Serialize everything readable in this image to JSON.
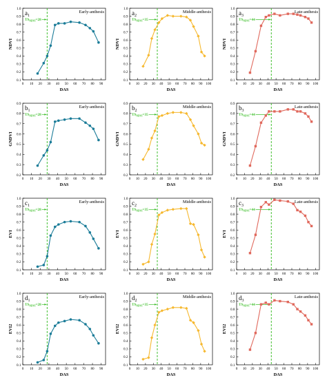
{
  "colors": {
    "early": "#1b7c98",
    "middle": "#f6b82e",
    "late": "#e0685c",
    "ts_line": "#3fbf2c"
  },
  "stages": {
    "early": {
      "title": "Early-anthesis",
      "ts_label": "TS",
      "ts_sub": "NDVI",
      "ts_value": "=28",
      "ts_x": 28
    },
    "middle": {
      "title": "Middle-anthesis",
      "ts_label": "TS",
      "ts_sub": "NDVI",
      "ts_value": "=35",
      "ts_x": 35
    },
    "late": {
      "title": "Late-anthesis",
      "ts_label": "TS",
      "ts_sub": "NDVI",
      "ts_value": "=44",
      "ts_x": 44
    }
  },
  "rows": [
    {
      "id": "a",
      "ylabel": "NDVI",
      "yticks": [
        "0.1",
        "0.2",
        "0.3",
        "0.4",
        "0.5",
        "0.6",
        "0.7",
        "0.8",
        "0.9",
        "1.0"
      ],
      "ylim": [
        0.1,
        1.0
      ]
    },
    {
      "id": "b",
      "ylabel": "GNDVI",
      "yticks": [
        "0.2",
        "0.3",
        "0.4",
        "0.5",
        "0.6",
        "0.7",
        "0.8",
        "0.9"
      ],
      "ylim": [
        0.2,
        0.9
      ]
    },
    {
      "id": "c",
      "ylabel": "EVI",
      "yticks": [
        "0.1",
        "0.2",
        "0.3",
        "0.4",
        "0.5",
        "0.6",
        "0.7",
        "0.8",
        "0.9",
        "1.0"
      ],
      "ylim": [
        0.1,
        1.0
      ]
    },
    {
      "id": "d",
      "ylabel": "EVI2",
      "yticks": [
        "0.1",
        "0.2",
        "0.3",
        "0.4",
        "0.5",
        "0.6",
        "0.7",
        "0.8",
        "0.9",
        "1.0"
      ],
      "ylim": [
        0.1,
        1.0
      ]
    }
  ],
  "xlabel": "DAS",
  "xticks_early": [
    "0",
    "10",
    "20",
    "30",
    "40",
    "50",
    "60",
    "70",
    "80",
    "90"
  ],
  "xticks": [
    "0",
    "10",
    "20",
    "30",
    "40",
    "50",
    "60",
    "70",
    "80",
    "90",
    "100"
  ],
  "xlim_early": [
    0,
    95
  ],
  "xlim": [
    0,
    105
  ],
  "chart_data": [
    {
      "panel": "a1",
      "type": "line",
      "title": "Early-anthesis",
      "xlabel": "DAS",
      "ylabel": "NDVI",
      "stage": "early",
      "x": [
        17,
        24,
        28,
        32,
        37,
        41,
        48,
        55,
        65,
        72,
        77,
        81,
        87
      ],
      "y": [
        0.18,
        0.31,
        0.4,
        0.53,
        0.79,
        0.81,
        0.81,
        0.83,
        0.82,
        0.79,
        0.75,
        0.71,
        0.57
      ]
    },
    {
      "panel": "a2",
      "type": "line",
      "title": "Middle-anthesis",
      "xlabel": "DAS",
      "ylabel": "NDVI",
      "stage": "middle",
      "x": [
        17,
        24,
        28,
        32,
        37,
        41,
        48,
        55,
        65,
        72,
        77,
        81,
        87,
        91,
        95
      ],
      "y": [
        0.27,
        0.41,
        0.62,
        0.73,
        0.82,
        0.87,
        0.91,
        0.9,
        0.9,
        0.89,
        0.85,
        0.77,
        0.65,
        0.45,
        0.4
      ]
    },
    {
      "panel": "a3",
      "type": "line",
      "title": "Late-anthesis",
      "xlabel": "DAS",
      "ylabel": "NDVI",
      "stage": "late",
      "x": [
        17,
        24,
        31,
        37,
        41,
        48,
        55,
        65,
        72,
        77,
        81,
        87,
        91,
        95
      ],
      "y": [
        0.19,
        0.46,
        0.78,
        0.89,
        0.91,
        0.93,
        0.91,
        0.93,
        0.93,
        0.92,
        0.91,
        0.89,
        0.87,
        0.82
      ]
    },
    {
      "panel": "b1",
      "type": "line",
      "title": "Early-anthesis",
      "xlabel": "DAS",
      "ylabel": "GNDVI",
      "stage": "early",
      "x": [
        17,
        24,
        28,
        32,
        37,
        41,
        48,
        55,
        65,
        72,
        77,
        81,
        87
      ],
      "y": [
        0.29,
        0.39,
        0.44,
        0.52,
        0.72,
        0.73,
        0.74,
        0.75,
        0.75,
        0.71,
        0.68,
        0.65,
        0.54
      ]
    },
    {
      "panel": "b2",
      "type": "line",
      "title": "Middle-anthesis",
      "xlabel": "DAS",
      "ylabel": "GNDVI",
      "stage": "middle",
      "x": [
        17,
        24,
        28,
        32,
        37,
        41,
        48,
        55,
        65,
        72,
        77,
        81,
        87,
        91,
        95
      ],
      "y": [
        0.35,
        0.45,
        0.56,
        0.63,
        0.77,
        0.78,
        0.8,
        0.81,
        0.81,
        0.8,
        0.74,
        0.68,
        0.6,
        0.51,
        0.49
      ]
    },
    {
      "panel": "b3",
      "type": "line",
      "title": "Late-anthesis",
      "xlabel": "DAS",
      "ylabel": "GNDVI",
      "stage": "late",
      "x": [
        17,
        24,
        31,
        37,
        41,
        48,
        55,
        65,
        72,
        77,
        81,
        87,
        91,
        95
      ],
      "y": [
        0.29,
        0.48,
        0.71,
        0.78,
        0.82,
        0.82,
        0.82,
        0.84,
        0.84,
        0.82,
        0.82,
        0.8,
        0.77,
        0.72
      ]
    },
    {
      "panel": "c1",
      "type": "line",
      "title": "Early-anthesis",
      "xlabel": "DAS",
      "ylabel": "EVI",
      "stage": "early",
      "x": [
        17,
        24,
        28,
        32,
        37,
        41,
        48,
        55,
        65,
        72,
        77,
        81,
        87
      ],
      "y": [
        0.14,
        0.16,
        0.27,
        0.53,
        0.64,
        0.67,
        0.7,
        0.71,
        0.7,
        0.65,
        0.57,
        0.49,
        0.37
      ]
    },
    {
      "panel": "c2",
      "type": "line",
      "title": "Middle-anthesis",
      "xlabel": "DAS",
      "ylabel": "EVI",
      "stage": "middle",
      "x": [
        17,
        24,
        28,
        32,
        37,
        41,
        48,
        55,
        65,
        72,
        77,
        81,
        87,
        91,
        95
      ],
      "y": [
        0.17,
        0.2,
        0.42,
        0.55,
        0.79,
        0.82,
        0.85,
        0.86,
        0.87,
        0.87,
        0.68,
        0.67,
        0.54,
        0.35,
        0.26
      ]
    },
    {
      "panel": "c3",
      "type": "line",
      "title": "Late-anthesis",
      "xlabel": "DAS",
      "ylabel": "EVI",
      "stage": "late",
      "x": [
        17,
        24,
        31,
        37,
        41,
        48,
        55,
        65,
        72,
        77,
        81,
        87,
        91,
        95
      ],
      "y": [
        0.31,
        0.54,
        0.89,
        0.95,
        0.92,
        0.98,
        0.97,
        0.96,
        0.93,
        0.85,
        0.83,
        0.78,
        0.7,
        0.65
      ]
    },
    {
      "panel": "d1",
      "type": "line",
      "title": "Early-anthesis",
      "xlabel": "DAS",
      "ylabel": "EVI2",
      "stage": "early",
      "x": [
        17,
        24,
        28,
        32,
        37,
        41,
        48,
        55,
        65,
        72,
        77,
        81,
        87
      ],
      "y": [
        0.13,
        0.16,
        0.27,
        0.49,
        0.59,
        0.63,
        0.65,
        0.67,
        0.66,
        0.61,
        0.55,
        0.47,
        0.37
      ]
    },
    {
      "panel": "d2",
      "type": "line",
      "title": "Middle-anthesis",
      "xlabel": "DAS",
      "ylabel": "EVI2",
      "stage": "middle",
      "x": [
        17,
        24,
        28,
        32,
        37,
        41,
        48,
        55,
        65,
        72,
        77,
        81,
        87,
        91,
        95
      ],
      "y": [
        0.17,
        0.19,
        0.44,
        0.6,
        0.76,
        0.78,
        0.8,
        0.82,
        0.82,
        0.81,
        0.66,
        0.63,
        0.53,
        0.36,
        0.27
      ]
    },
    {
      "panel": "d3",
      "type": "line",
      "title": "Late-anthesis",
      "xlabel": "DAS",
      "ylabel": "EVI2",
      "stage": "late",
      "x": [
        17,
        24,
        31,
        37,
        41,
        48,
        55,
        65,
        72,
        77,
        81,
        87,
        91,
        95
      ],
      "y": [
        0.29,
        0.5,
        0.86,
        0.88,
        0.86,
        0.91,
        0.9,
        0.89,
        0.86,
        0.8,
        0.77,
        0.72,
        0.66,
        0.61
      ]
    }
  ]
}
